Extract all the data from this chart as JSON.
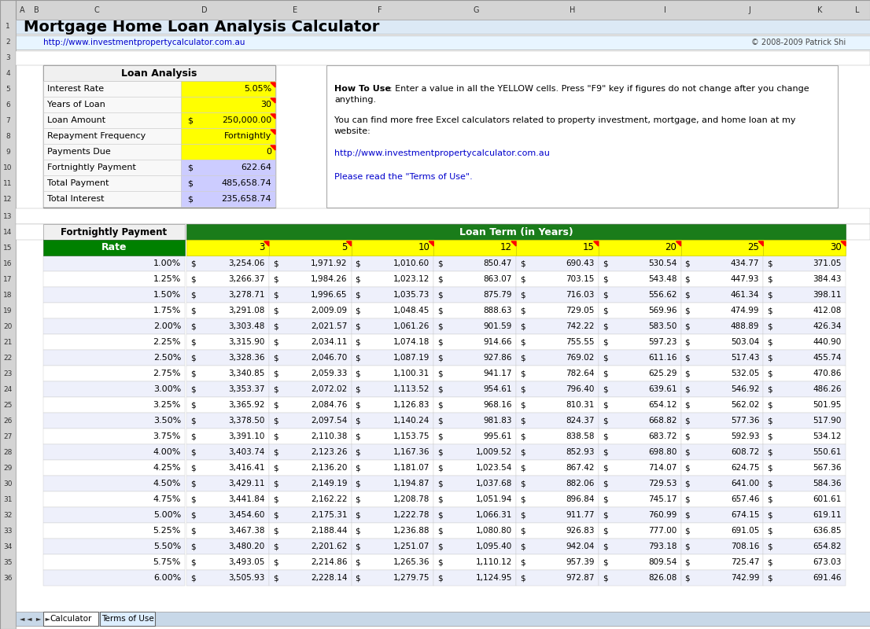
{
  "title": "Mortgage Home Loan Analysis Calculator",
  "url_left": "http://www.investmentpropertycalculator.com.au",
  "url_right": "© 2008-2009 Patrick Shi",
  "loan_analysis_title": "Loan Analysis",
  "loan_fields": [
    {
      "label": "Interest Rate",
      "value": "5.05%",
      "yellow": true,
      "dollar": false
    },
    {
      "label": "Years of Loan",
      "value": "30",
      "yellow": true,
      "dollar": false
    },
    {
      "label": "Loan Amount",
      "value": "250,000.00",
      "yellow": true,
      "dollar": true
    },
    {
      "label": "Repayment Frequency",
      "value": "Fortnightly",
      "yellow": true,
      "dollar": false
    },
    {
      "label": "Payments Due",
      "value": "0",
      "yellow": true,
      "dollar": false
    },
    {
      "label": "Fortnightly Payment",
      "value": "622.64",
      "yellow": false,
      "dollar": true
    },
    {
      "label": "Total Payment",
      "value": "485,658.74",
      "yellow": false,
      "dollar": true
    },
    {
      "label": "Total Interest",
      "value": "235,658.74",
      "yellow": false,
      "dollar": true
    }
  ],
  "how_to_text1": "How To Use: Enter a value in all the YELLOW cells. Press \"F9\" key if figures do not change after you change anything.",
  "how_to_text2": "You can find more free Excel calculators related to property investment, mortgage, and home loan at my website:",
  "how_to_url": "http://www.investmentpropertycalculator.com.au",
  "how_to_terms": "Please read the \"Terms of Use\".",
  "table_header1": "Fortnightly Payment",
  "table_header2": "Loan Term (in Years)",
  "col_header": "Rate",
  "col_years": [
    3,
    5,
    10,
    12,
    15,
    20,
    25,
    30
  ],
  "rates": [
    "1.00%",
    "1.25%",
    "1.50%",
    "1.75%",
    "2.00%",
    "2.25%",
    "2.50%",
    "2.75%",
    "3.00%",
    "3.25%",
    "3.50%",
    "3.75%",
    "4.00%",
    "4.25%",
    "4.50%",
    "4.75%",
    "5.00%",
    "5.25%",
    "5.50%",
    "5.75%",
    "6.00%"
  ],
  "table_data": [
    [
      3254.06,
      1971.92,
      1010.6,
      850.47,
      690.43,
      530.54,
      434.77,
      371.05
    ],
    [
      3266.37,
      1984.26,
      1023.12,
      863.07,
      703.15,
      543.48,
      447.93,
      384.43
    ],
    [
      3278.71,
      1996.65,
      1035.73,
      875.79,
      716.03,
      556.62,
      461.34,
      398.11
    ],
    [
      3291.08,
      2009.09,
      1048.45,
      888.63,
      729.05,
      569.96,
      474.99,
      412.08
    ],
    [
      3303.48,
      2021.57,
      1061.26,
      901.59,
      742.22,
      583.5,
      488.89,
      426.34
    ],
    [
      3315.9,
      2034.11,
      1074.18,
      914.66,
      755.55,
      597.23,
      503.04,
      440.9
    ],
    [
      3328.36,
      2046.7,
      1087.19,
      927.86,
      769.02,
      611.16,
      517.43,
      455.74
    ],
    [
      3340.85,
      2059.33,
      1100.31,
      941.17,
      782.64,
      625.29,
      532.05,
      470.86
    ],
    [
      3353.37,
      2072.02,
      1113.52,
      954.61,
      796.4,
      639.61,
      546.92,
      486.26
    ],
    [
      3365.92,
      2084.76,
      1126.83,
      968.16,
      810.31,
      654.12,
      562.02,
      501.95
    ],
    [
      3378.5,
      2097.54,
      1140.24,
      981.83,
      824.37,
      668.82,
      577.36,
      517.9
    ],
    [
      3391.1,
      2110.38,
      1153.75,
      995.61,
      838.58,
      683.72,
      592.93,
      534.12
    ],
    [
      3403.74,
      2123.26,
      1167.36,
      1009.52,
      852.93,
      698.8,
      608.72,
      550.61
    ],
    [
      3416.41,
      2136.2,
      1181.07,
      1023.54,
      867.42,
      714.07,
      624.75,
      567.36
    ],
    [
      3429.11,
      2149.19,
      1194.87,
      1037.68,
      882.06,
      729.53,
      641.0,
      584.36
    ],
    [
      3441.84,
      2162.22,
      1208.78,
      1051.94,
      896.84,
      745.17,
      657.46,
      601.61
    ],
    [
      3454.6,
      2175.31,
      1222.78,
      1066.31,
      911.77,
      760.99,
      674.15,
      619.11
    ],
    [
      3467.38,
      2188.44,
      1236.88,
      1080.8,
      926.83,
      777.0,
      691.05,
      636.85
    ],
    [
      3480.2,
      2201.62,
      1251.07,
      1095.4,
      942.04,
      793.18,
      708.16,
      654.82
    ],
    [
      3493.05,
      2214.86,
      1265.36,
      1110.12,
      957.39,
      809.54,
      725.47,
      673.03
    ],
    [
      3505.93,
      2228.14,
      1279.75,
      1124.95,
      972.87,
      826.08,
      742.99,
      691.46
    ]
  ],
  "bg_color": "#d6eaf8",
  "sheet_bg": "#e8f4f8",
  "header_bg": "#ffffff",
  "row_bg_light": "#eef0fb",
  "row_bg_white": "#ffffff",
  "green_dark": "#1a7c1a",
  "green_medium": "#2d9e2d",
  "yellow": "#ffff00",
  "purple_light": "#ccccff",
  "title_row_bg": "#c8d8e8",
  "col_header_bg": "#008000",
  "col_header_fg": "#ffffff"
}
